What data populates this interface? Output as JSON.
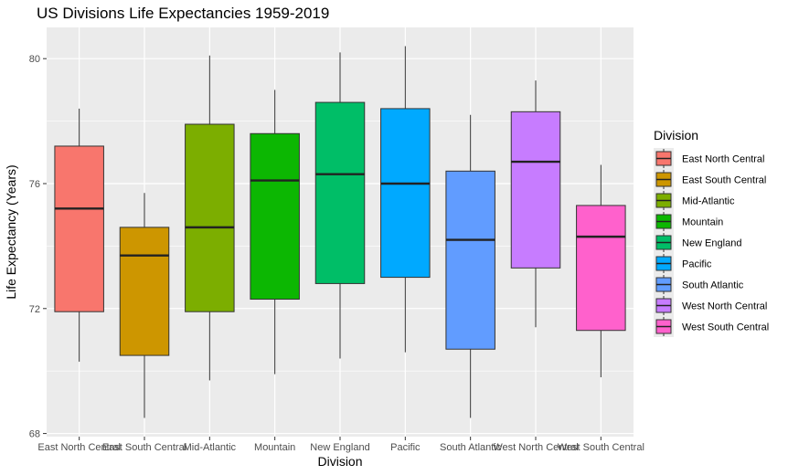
{
  "chart_data": {
    "type": "boxplot",
    "title": "US Divisions Life Expectancies 1959-2019",
    "xlabel": "Division",
    "ylabel": "Life Expectancy (Years)",
    "ylim": [
      67.9,
      81.0
    ],
    "yticks": [
      68,
      72,
      76,
      80
    ],
    "grid": true,
    "legend": {
      "title": "Division",
      "position": "right"
    },
    "categories": [
      "East North Central",
      "East South Central",
      "Mid-Atlantic",
      "Mountain",
      "New England",
      "Pacific",
      "South Atlantic",
      "West North Central",
      "West South Central"
    ],
    "series": [
      {
        "name": "East North Central",
        "color": "#F8766D",
        "min": 70.3,
        "q1": 71.9,
        "median": 75.2,
        "q3": 77.2,
        "max": 78.4
      },
      {
        "name": "East South Central",
        "color": "#CD9600",
        "min": 68.5,
        "q1": 70.5,
        "median": 73.7,
        "q3": 74.6,
        "max": 75.7
      },
      {
        "name": "Mid-Atlantic",
        "color": "#7CAE00",
        "min": 69.7,
        "q1": 71.9,
        "median": 74.6,
        "q3": 77.9,
        "max": 80.1
      },
      {
        "name": "Mountain",
        "color": "#0CB702",
        "min": 69.9,
        "q1": 72.3,
        "median": 76.1,
        "q3": 77.6,
        "max": 79.0
      },
      {
        "name": "New England",
        "color": "#00BE67",
        "min": 70.4,
        "q1": 72.8,
        "median": 76.3,
        "q3": 78.6,
        "max": 80.2
      },
      {
        "name": "Pacific",
        "color": "#00A9FF",
        "min": 70.6,
        "q1": 73.0,
        "median": 76.0,
        "q3": 78.4,
        "max": 80.4
      },
      {
        "name": "South Atlantic",
        "color": "#619CFF",
        "min": 68.5,
        "q1": 70.7,
        "median": 74.2,
        "q3": 76.4,
        "max": 78.2
      },
      {
        "name": "West North Central",
        "color": "#C77CFF",
        "min": 71.4,
        "q1": 73.3,
        "median": 76.7,
        "q3": 78.3,
        "max": 79.3
      },
      {
        "name": "West South Central",
        "color": "#FF61CC",
        "min": 69.8,
        "q1": 71.3,
        "median": 74.3,
        "q3": 75.3,
        "max": 76.6
      }
    ]
  }
}
